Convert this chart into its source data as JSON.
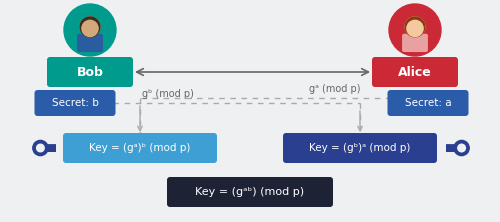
{
  "bg_color": "#eef0f2",
  "bob_box_color": "#009b8d",
  "alice_box_color": "#cc2936",
  "secret_box_color": "#2a5caa",
  "key_bob_box_color": "#3d9fd3",
  "key_alice_box_color": "#2a3f8f",
  "final_key_box_color": "#1e2235",
  "bob_avatar_color": "#009b8d",
  "alice_avatar_color": "#cc2936",
  "bob_label": "Bob",
  "alice_label": "Alice",
  "secret_bob": "Secret: b",
  "secret_alice": "Secret: a",
  "key_bob": "Key = (gᵃ)ᵇ (mod p)",
  "key_alice": "Key = (gᵇ)ᵃ (mod p)",
  "key_final": "Key = (gᵃᵇ) (mod p)",
  "arrow_label_left": "gᵇ (mod p)",
  "arrow_label_right": "gᵃ (mod p)",
  "text_color": "#ffffff",
  "arrow_color": "#aaaaaa",
  "dashed_color": "#aaaaaa",
  "key_icon_color": "#2a3f8f",
  "figwidth": 5.0,
  "figheight": 2.22,
  "dpi": 100
}
